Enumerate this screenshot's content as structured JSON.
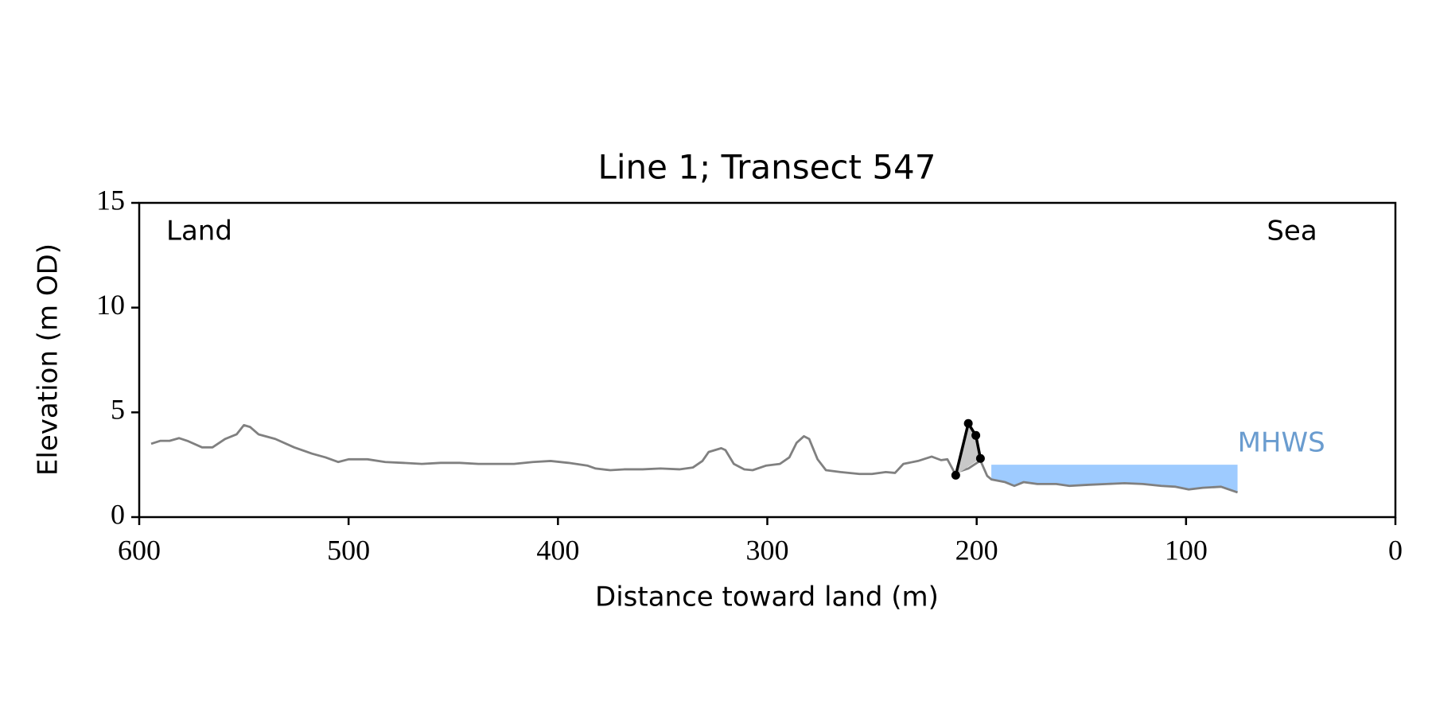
{
  "chart_data": {
    "type": "line",
    "title": "Line 1; Transect 547",
    "xlabel": "Distance toward land (m)",
    "ylabel": "Elevation (m OD)",
    "xlim": [
      600,
      0
    ],
    "xticks": [
      600,
      500,
      400,
      300,
      200,
      100,
      0
    ],
    "ylim": [
      0,
      15
    ],
    "yticks": [
      0,
      5,
      10,
      15
    ],
    "annotations": [
      {
        "text": "Land",
        "corner": "top-left"
      },
      {
        "text": "Sea",
        "corner": "top-right"
      }
    ],
    "series": [
      {
        "color": "#808080",
        "x": [
          594.3,
          590,
          585.5,
          581,
          577,
          570,
          565,
          559,
          553.5,
          550,
          547,
          543,
          535,
          526,
          517.5,
          511,
          505,
          500,
          491,
          482.5,
          474,
          465,
          456,
          447,
          438,
          430,
          421,
          412,
          403.5,
          395,
          386,
          382,
          375,
          368.4,
          359.6,
          351,
          342,
          335.5,
          331,
          328,
          322,
          320,
          316,
          311,
          307,
          300.5,
          294,
          289.5,
          286,
          282.5,
          280,
          276,
          272,
          265,
          256,
          250,
          243.4,
          239,
          235,
          228,
          221.5,
          217,
          214,
          210.5,
          204,
          198.2,
          195,
          193,
          186.4,
          182,
          177.6,
          171,
          162,
          155.7,
          147,
          138,
          129.4,
          120.6,
          111.8,
          105,
          98.7,
          92,
          83.3,
          75.4
        ],
        "values": [
          3.5,
          3.64,
          3.64,
          3.77,
          3.64,
          3.33,
          3.33,
          3.73,
          3.95,
          4.39,
          4.3,
          3.95,
          3.73,
          3.33,
          3.03,
          2.85,
          2.63,
          2.76,
          2.76,
          2.63,
          2.59,
          2.54,
          2.59,
          2.59,
          2.54,
          2.54,
          2.54,
          2.63,
          2.68,
          2.59,
          2.46,
          2.32,
          2.24,
          2.28,
          2.28,
          2.32,
          2.28,
          2.37,
          2.68,
          3.11,
          3.29,
          3.2,
          2.54,
          2.28,
          2.24,
          2.46,
          2.54,
          2.85,
          3.55,
          3.86,
          3.73,
          2.76,
          2.24,
          2.15,
          2.06,
          2.06,
          2.15,
          2.11,
          2.54,
          2.68,
          2.89,
          2.72,
          2.76,
          2.11,
          2.32,
          2.7,
          1.97,
          1.8,
          1.67,
          1.49,
          1.67,
          1.58,
          1.58,
          1.49,
          1.54,
          1.58,
          1.62,
          1.58,
          1.49,
          1.45,
          1.32,
          1.4,
          1.45,
          1.18
        ]
      },
      {
        "color": "#000000",
        "markers": true,
        "fill": "#c8c8c8",
        "x": [
          210,
          204,
          200.4,
          198.2
        ],
        "values": [
          2.0,
          4.47,
          3.9,
          2.8
        ]
      }
    ],
    "mhws": {
      "label": "MHWS",
      "level": 2.5,
      "x": [
        193,
        75.4
      ],
      "color": "#9ecbff",
      "label_color": "#6a9ccf"
    }
  }
}
